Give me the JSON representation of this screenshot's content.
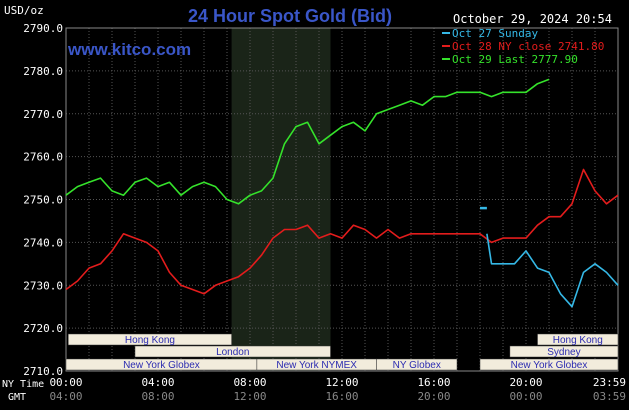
{
  "header": {
    "title": "24 Hour Spot Gold (Bid)",
    "timestamp": "October 29, 2024 20:54",
    "site": "www.kitco.com",
    "unit": "USD/oz"
  },
  "colors": {
    "background": "#000000",
    "plot_bg": "#000000",
    "nymex_shade": "#1a2418",
    "grid": "#5a5a5a",
    "axis_text": "#ffffff",
    "title": "#3a56c8",
    "site": "#3a56c8",
    "oct27": "#35b8e6",
    "oct28": "#e31c1c",
    "oct29": "#35e22b",
    "session_fill": "#f2ecdc",
    "session_text": "#2b2bb0"
  },
  "legend": [
    {
      "label": "Oct 27 Sunday",
      "color": "#35b8e6"
    },
    {
      "label": "Oct 28 NY close 2741.80",
      "color": "#e31c1c"
    },
    {
      "label": "Oct 29 Last 2777.90",
      "color": "#35e22b"
    }
  ],
  "axis": {
    "y_ticks": [
      "2790.0",
      "2780.0",
      "2770.0",
      "2760.0",
      "2750.0",
      "2740.0",
      "2730.0",
      "2720.0",
      "2710.0"
    ],
    "ny_label": "NY Time",
    "gmt_label": "GMT",
    "ny_ticks": [
      "00:00",
      "04:00",
      "08:00",
      "12:00",
      "16:00",
      "20:00",
      "23:59"
    ],
    "gmt_ticks": [
      "04:00",
      "08:00",
      "12:00",
      "16:00",
      "20:00",
      "00:00",
      "03:59"
    ]
  },
  "sessions": {
    "row1": [
      {
        "label": "Hong Kong",
        "start": 0.1,
        "end": 7.2
      },
      {
        "label": "Hong Kong",
        "start": 20.5,
        "end": 24.0
      }
    ],
    "row2": [
      {
        "label": "London",
        "start": 3.0,
        "end": 11.5
      },
      {
        "label": "Sydney",
        "start": 19.3,
        "end": 24.0
      }
    ],
    "row3": [
      {
        "label": "New York Globex",
        "start": 0.0,
        "end": 8.3
      },
      {
        "label": "New York NYMEX",
        "start": 8.3,
        "end": 13.5
      },
      {
        "label": "NY Globex",
        "start": 13.5,
        "end": 17.0
      },
      {
        "label": "New York Globex",
        "start": 18.0,
        "end": 24.0
      }
    ]
  },
  "chart_data": {
    "type": "line",
    "title": "24 Hour Spot Gold (Bid)",
    "ylabel": "USD/oz",
    "xlabel": "",
    "ylim": [
      2710,
      2790
    ],
    "xlim": [
      0,
      24
    ],
    "grid": true,
    "legend_position": "top-right",
    "shaded_region": [
      7.2,
      11.5
    ],
    "series": [
      {
        "name": "Oct 27 Sunday",
        "x": [
          18.0,
          18.3
        ],
        "y": [
          2748.0,
          2748.0
        ]
      },
      {
        "name": "Oct 28 NY close 2741.80",
        "x": [
          0.0,
          0.5,
          1.0,
          1.5,
          2.0,
          2.5,
          3.0,
          3.5,
          4.0,
          4.5,
          5.0,
          5.5,
          6.0,
          6.5,
          7.0,
          7.5,
          8.0,
          8.5,
          9.0,
          9.5,
          10.0,
          10.5,
          11.0,
          11.5,
          12.0,
          12.5,
          13.0,
          13.5,
          14.0,
          14.5,
          15.0,
          15.5,
          16.0,
          16.5,
          17.0,
          17.5,
          18.0,
          18.5,
          19.0,
          19.5,
          20.0,
          20.5,
          21.0,
          21.5,
          22.0,
          22.5,
          23.0,
          23.5,
          24.0
        ],
        "y": [
          2729,
          2731,
          2734,
          2735,
          2738,
          2742,
          2741,
          2740,
          2738,
          2733,
          2730,
          2729,
          2728,
          2730,
          2731,
          2732,
          2734,
          2737,
          2741,
          2743,
          2743,
          2744,
          2741,
          2742,
          2741,
          2744,
          2743,
          2741,
          2743,
          2741,
          2742,
          2742,
          2742,
          2742,
          2742,
          2742,
          2742,
          2740,
          2741,
          2741,
          2741,
          2744,
          2746,
          2746,
          2749,
          2757,
          2752,
          2749,
          2751
        ]
      },
      {
        "name": "Oct 29 Last 2777.90",
        "x": [
          0.0,
          0.5,
          1.0,
          1.5,
          2.0,
          2.5,
          3.0,
          3.5,
          4.0,
          4.5,
          5.0,
          5.5,
          6.0,
          6.5,
          7.0,
          7.5,
          8.0,
          8.5,
          9.0,
          9.5,
          10.0,
          10.5,
          11.0,
          11.5,
          12.0,
          12.5,
          13.0,
          13.5,
          14.0,
          14.5,
          15.0,
          15.5,
          16.0,
          16.5,
          17.0,
          17.5,
          18.0,
          18.5,
          19.0,
          19.5,
          20.0,
          20.5,
          21.0
        ],
        "y": [
          2751,
          2753,
          2754,
          2755,
          2752,
          2751,
          2754,
          2755,
          2753,
          2754,
          2751,
          2753,
          2754,
          2753,
          2750,
          2749,
          2751,
          2752,
          2755,
          2763,
          2767,
          2768,
          2763,
          2765,
          2767,
          2768,
          2766,
          2770,
          2771,
          2772,
          2773,
          2772,
          2774,
          2774,
          2775,
          2775,
          2775,
          2774,
          2775,
          2775,
          2775,
          2777,
          2778
        ]
      },
      {
        "name": "Oct 27 Sunday",
        "x": [
          18.3,
          18.5,
          19.0,
          19.5,
          20.0,
          20.5,
          21.0,
          21.5,
          22.0,
          22.5,
          23.0,
          23.5,
          24.0
        ],
        "y": [
          2742,
          2735,
          2735,
          2735,
          2738,
          2734,
          2733,
          2728,
          2725,
          2733,
          2735,
          2733,
          2730
        ]
      }
    ]
  }
}
